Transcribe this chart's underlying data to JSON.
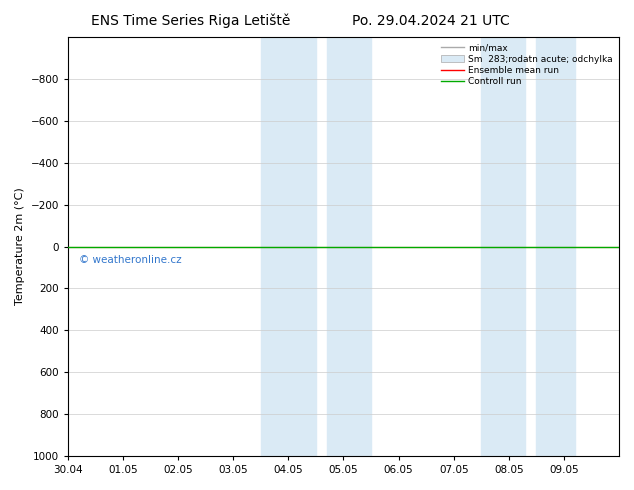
{
  "title_left": "ENS Time Series Riga Letiště",
  "title_right": "Po. 29.04.2024 21 UTC",
  "ylabel": "Temperature 2m (°C)",
  "xlim": [
    0,
    10
  ],
  "ylim": [
    -1000,
    1000
  ],
  "yticks": [
    -800,
    -600,
    -400,
    -200,
    0,
    200,
    400,
    600,
    800,
    1000
  ],
  "xtick_labels": [
    "30.04",
    "01.05",
    "02.05",
    "03.05",
    "04.05",
    "05.05",
    "06.05",
    "07.05",
    "08.05",
    "09.05"
  ],
  "xtick_positions": [
    0,
    1,
    2,
    3,
    4,
    5,
    6,
    7,
    8,
    9
  ],
  "blue_bands": [
    [
      3.5,
      4.5
    ],
    [
      4.7,
      5.5
    ],
    [
      7.5,
      8.3
    ],
    [
      8.5,
      9.2
    ]
  ],
  "blue_band_color": "#daeaf5",
  "control_run_y": 0,
  "ensemble_mean_y": 0,
  "watermark": "© weatheronline.cz",
  "watermark_color": "#3377cc",
  "background_color": "#ffffff",
  "grid_color": "#cccccc",
  "title_fontsize": 10,
  "axis_fontsize": 8,
  "tick_fontsize": 7.5
}
